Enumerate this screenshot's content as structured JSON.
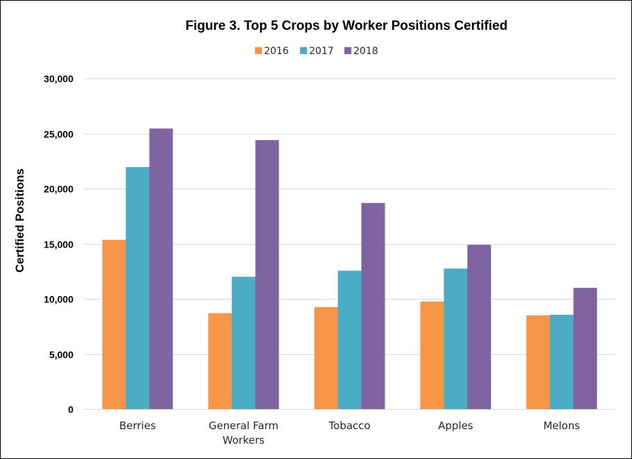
{
  "chart_data": {
    "type": "bar",
    "title": "Figure 3. Top 5 Crops by Worker Positions Certified",
    "ylabel": "Certified Positions",
    "xlabel": "",
    "categories": [
      "Berries",
      [
        "General Farm",
        "Workers"
      ],
      "Tobacco",
      "Apples",
      "Melons"
    ],
    "series": [
      {
        "name": "2016",
        "color": "#F79646",
        "values": [
          15350,
          8700,
          9250,
          9750,
          8500
        ]
      },
      {
        "name": "2017",
        "color": "#4BACC6",
        "values": [
          21950,
          12000,
          12550,
          12750,
          8550
        ]
      },
      {
        "name": "2018",
        "color": "#8064A2",
        "values": [
          25450,
          24400,
          18700,
          14900,
          11000
        ]
      }
    ],
    "ylim": [
      0,
      30000
    ],
    "yticks": [
      0,
      5000,
      10000,
      15000,
      20000,
      25000,
      30000
    ],
    "ytick_labels": [
      "0",
      "5,000",
      "10,000",
      "15,000",
      "20,000",
      "25,000",
      "30,000"
    ],
    "grid": true,
    "legend_position": "top"
  }
}
